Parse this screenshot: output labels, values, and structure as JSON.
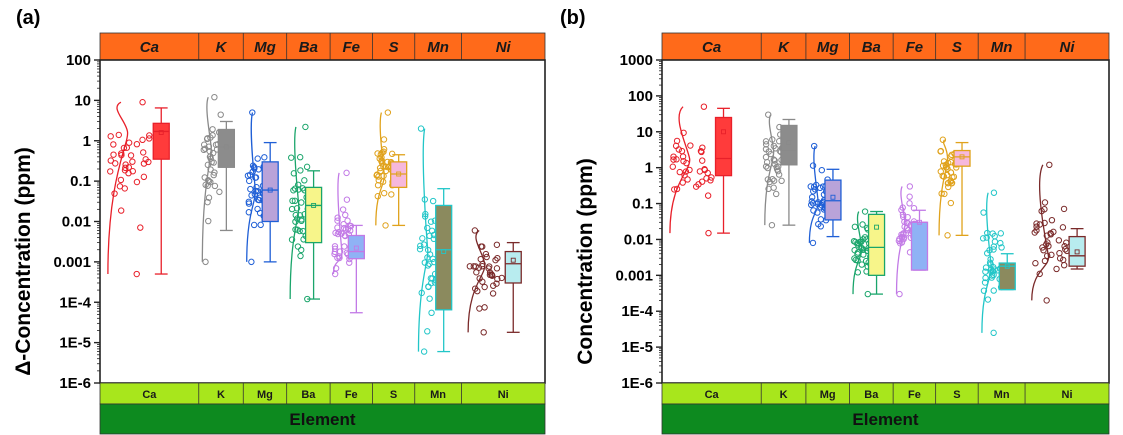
{
  "chart_data": [
    {
      "panel_label": "(a)",
      "type": "box",
      "ylabel": "Δ-Concentration (ppm)",
      "y_scale": "log",
      "ylim": [
        1e-06,
        100
      ],
      "y_ticks": [
        "100",
        "10",
        "1",
        "0.1",
        "0.01",
        "0.001",
        "1E-4",
        "1E-5",
        "1E-6"
      ],
      "xlabel": "Element",
      "categories": [
        "Ca",
        "K",
        "Mg",
        "Ba",
        "Fe",
        "S",
        "Mn",
        "Ni"
      ],
      "series": [
        {
          "name": "Ca",
          "color": "#e8202a",
          "fill": "#ff3b3b",
          "whisker_low": 0.0005,
          "q1": 0.35,
          "median": 1.7,
          "q3": 2.7,
          "whisker_high": 6.5,
          "mean": 1.6,
          "points_min": 0.0005,
          "points_max": 9
        },
        {
          "name": "K",
          "color": "#8a8a8a",
          "fill": "#8c8c8c",
          "whisker_low": 0.006,
          "q1": 0.22,
          "median": 0.7,
          "q3": 1.9,
          "whisker_high": 3.0,
          "mean": 0.7,
          "points_min": 0.001,
          "points_max": 12
        },
        {
          "name": "Mg",
          "color": "#1f5fd6",
          "fill": "#b9a3d9",
          "whisker_low": 0.001,
          "q1": 0.01,
          "median": 0.06,
          "q3": 0.3,
          "whisker_high": 0.9,
          "mean": 0.06,
          "points_min": 0.001,
          "points_max": 5
        },
        {
          "name": "Ba",
          "color": "#1aa56b",
          "fill": "#f7f58a",
          "whisker_low": 0.00012,
          "q1": 0.003,
          "median": 0.025,
          "q3": 0.07,
          "whisker_high": 0.18,
          "mean": 0.025,
          "points_min": 0.00012,
          "points_max": 2.2
        },
        {
          "name": "Fe",
          "color": "#c27ae6",
          "fill": "#8fb2f5",
          "whisker_low": 5.5e-05,
          "q1": 0.0012,
          "median": 0.0018,
          "q3": 0.0045,
          "whisker_high": 0.008,
          "mean": 0.0022,
          "points_min": 0.0005,
          "points_max": 0.16
        },
        {
          "name": "S",
          "color": "#e0a21c",
          "fill": "#f6b8dc",
          "whisker_low": 0.008,
          "q1": 0.07,
          "median": 0.15,
          "q3": 0.3,
          "whisker_high": 0.45,
          "mean": 0.15,
          "points_min": 0.008,
          "points_max": 5
        },
        {
          "name": "Mn",
          "color": "#22c6c8",
          "fill": "#8b8a5e",
          "whisker_low": 6e-06,
          "q1": 6.5e-05,
          "median": 0.002,
          "q3": 0.025,
          "whisker_high": 0.065,
          "mean": 0.0018,
          "points_min": 6e-06,
          "points_max": 2
        },
        {
          "name": "Ni",
          "color": "#7a2a2a",
          "fill": "#b8ecef",
          "whisker_low": 1.8e-05,
          "q1": 0.0003,
          "median": 0.0009,
          "q3": 0.0018,
          "whisker_high": 0.003,
          "mean": 0.0011,
          "points_min": 1.8e-05,
          "points_max": 0.006
        }
      ]
    },
    {
      "panel_label": "(b)",
      "type": "box",
      "ylabel": "Concentration (ppm)",
      "y_scale": "log",
      "ylim": [
        1e-06,
        1000
      ],
      "y_ticks": [
        "1000",
        "100",
        "10",
        "1",
        "0.1",
        "0.01",
        "0.001",
        "1E-4",
        "1E-5",
        "1E-6"
      ],
      "xlabel": "Element",
      "categories": [
        "Ca",
        "K",
        "Mg",
        "Ba",
        "Fe",
        "S",
        "Mn",
        "Ni"
      ],
      "series": [
        {
          "name": "Ca",
          "color": "#e8202a",
          "fill": "#ff3b3b",
          "whisker_low": 0.015,
          "q1": 0.6,
          "median": 1.8,
          "q3": 25,
          "whisker_high": 45,
          "mean": 10,
          "points_min": 0.015,
          "points_max": 50
        },
        {
          "name": "K",
          "color": "#8a8a8a",
          "fill": "#8c8c8c",
          "whisker_low": 0.025,
          "q1": 1.2,
          "median": 3.0,
          "q3": 15,
          "whisker_high": 22,
          "mean": 5,
          "points_min": 0.025,
          "points_max": 30
        },
        {
          "name": "Mg",
          "color": "#1f5fd6",
          "fill": "#b9a3d9",
          "whisker_low": 0.012,
          "q1": 0.035,
          "median": 0.12,
          "q3": 0.45,
          "whisker_high": 0.9,
          "mean": 0.15,
          "points_min": 0.008,
          "points_max": 4
        },
        {
          "name": "Ba",
          "color": "#1aa56b",
          "fill": "#f7f58a",
          "whisker_low": 0.0003,
          "q1": 0.001,
          "median": 0.006,
          "q3": 0.05,
          "whisker_high": 0.06,
          "mean": 0.022,
          "points_min": 0.0003,
          "points_max": 0.06
        },
        {
          "name": "Fe",
          "color": "#c27ae6",
          "fill": "#8fb2f5",
          "whisker_low": 0.0014,
          "q1": 0.0014,
          "median": 0.03,
          "q3": 0.03,
          "whisker_high": 0.065,
          "mean": 0.03,
          "points_min": 0.0003,
          "points_max": 0.3
        },
        {
          "name": "S",
          "color": "#e0a21c",
          "fill": "#f6b8dc",
          "whisker_low": 0.013,
          "q1": 1.1,
          "median": 2.0,
          "q3": 3.0,
          "whisker_high": 5.0,
          "mean": 2.0,
          "points_min": 0.013,
          "points_max": 6
        },
        {
          "name": "Mn",
          "color": "#22c6c8",
          "fill": "#8b8a5e",
          "whisker_low": 0.0004,
          "q1": 0.0004,
          "median": 0.0018,
          "q3": 0.0022,
          "whisker_high": 0.004,
          "mean": 0.0018,
          "points_min": 2.5e-05,
          "points_max": 0.2
        },
        {
          "name": "Ni",
          "color": "#7a2a2a",
          "fill": "#b8ecef",
          "whisker_low": 0.0015,
          "q1": 0.0018,
          "median": 0.0035,
          "q3": 0.012,
          "whisker_high": 0.02,
          "mean": 0.0045,
          "points_min": 0.0002,
          "points_max": 1.2
        }
      ]
    }
  ],
  "colors": {
    "top_bar": "#ff6a1a",
    "bottom_bar": "#a8e61c",
    "xlabel_bar": "#0d8a1f"
  }
}
